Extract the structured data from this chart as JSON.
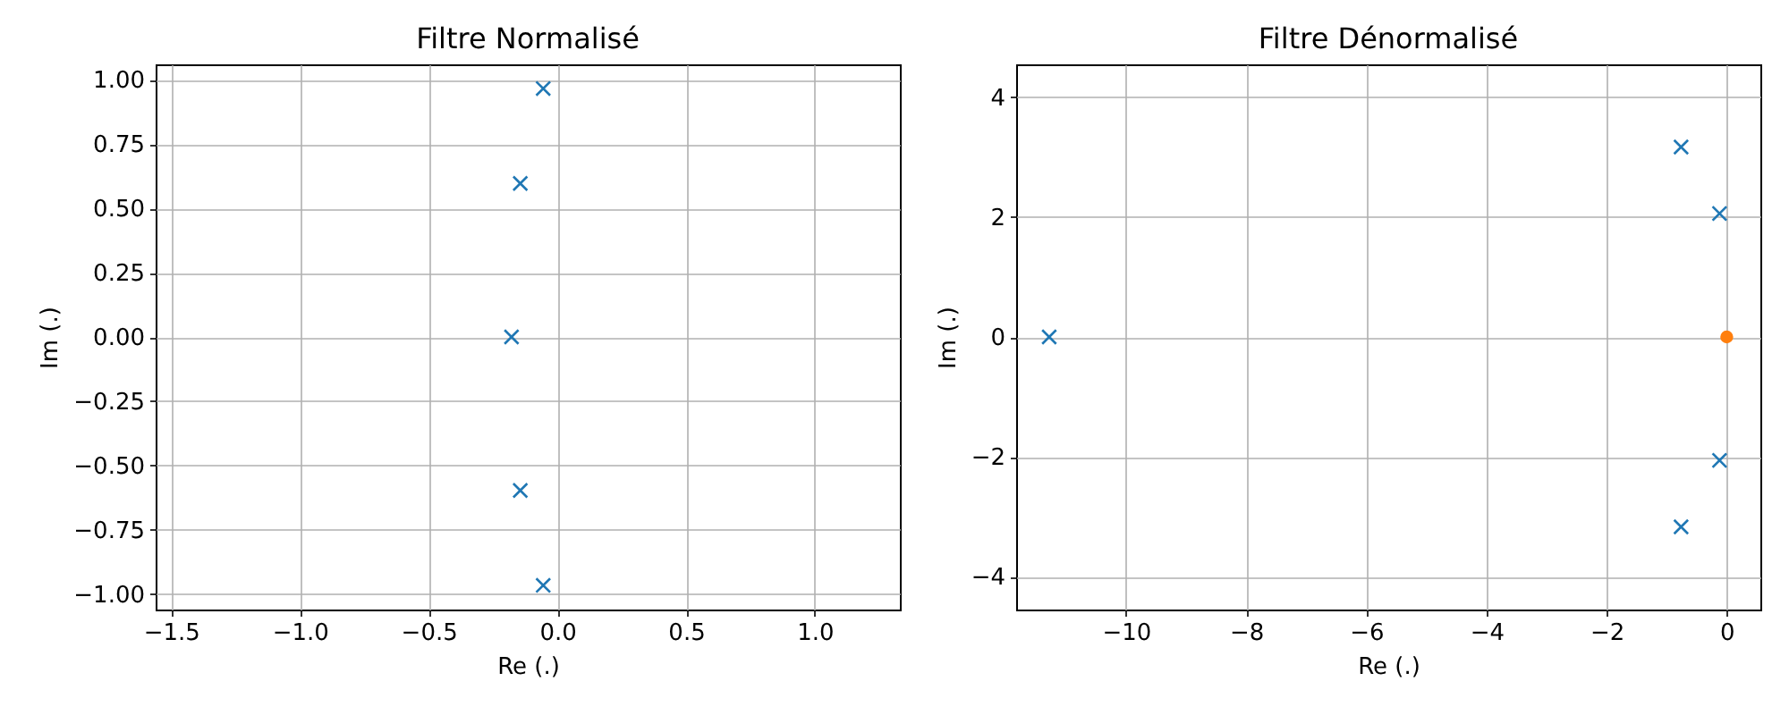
{
  "chart_data": [
    {
      "type": "scatter",
      "title": "Filtre Normalisé",
      "xlabel": "Re (.)",
      "ylabel": "Im (.)",
      "xlim": [
        -1.56,
        1.33
      ],
      "ylim": [
        -1.06,
        1.06
      ],
      "xticks": [
        {
          "value": -1.5,
          "label": "−1.5"
        },
        {
          "value": -1.0,
          "label": "−1.0"
        },
        {
          "value": -0.5,
          "label": "−0.5"
        },
        {
          "value": 0,
          "label": "0.0"
        },
        {
          "value": 0.5,
          "label": "0.5"
        },
        {
          "value": 1.0,
          "label": "1.0"
        }
      ],
      "yticks": [
        {
          "value": -1.0,
          "label": "−1.00"
        },
        {
          "value": -0.75,
          "label": "−0.75"
        },
        {
          "value": -0.5,
          "label": "−0.50"
        },
        {
          "value": -0.25,
          "label": "−0.25"
        },
        {
          "value": 0,
          "label": "0.00"
        },
        {
          "value": 0.25,
          "label": "0.25"
        },
        {
          "value": 0.5,
          "label": "0.50"
        },
        {
          "value": 0.75,
          "label": "0.75"
        },
        {
          "value": 1.0,
          "label": "1.00"
        }
      ],
      "grid": true,
      "marker": "cross",
      "series": [
        {
          "color": "#1f77b4",
          "x": [
            -0.055,
            -0.144,
            -0.178,
            -0.144,
            -0.055
          ],
          "values": [
            0.966,
            0.597,
            0,
            -0.597,
            -0.966
          ]
        }
      ]
    },
    {
      "type": "scatter",
      "title": "Filtre Dénormalisé",
      "xlabel": "Re (.)",
      "ylabel": "Im (.)",
      "xlim": [
        -11.83,
        0.56
      ],
      "ylim": [
        -4.55,
        4.55
      ],
      "xticks": [
        {
          "value": -10,
          "label": "−10"
        },
        {
          "value": -8,
          "label": "−8"
        },
        {
          "value": -6,
          "label": "−6"
        },
        {
          "value": -4,
          "label": "−4"
        },
        {
          "value": -2,
          "label": "−2"
        },
        {
          "value": 0,
          "label": "0"
        }
      ],
      "yticks": [
        {
          "value": -4,
          "label": "−4"
        },
        {
          "value": -2,
          "label": "−2"
        },
        {
          "value": 0,
          "label": "0"
        },
        {
          "value": 2,
          "label": "2"
        },
        {
          "value": 4,
          "label": "4"
        }
      ],
      "grid": true,
      "series": [
        {
          "color": "#1f77b4",
          "marker": "cross",
          "x": [
            -0.12,
            -0.76,
            -11.28,
            -0.76,
            -0.12
          ],
          "values": [
            2.06,
            3.17,
            0,
            -3.17,
            -2.06
          ]
        },
        {
          "color": "#ff7f0e",
          "marker": "circle",
          "x": [
            0
          ],
          "values": [
            0
          ]
        }
      ]
    }
  ]
}
